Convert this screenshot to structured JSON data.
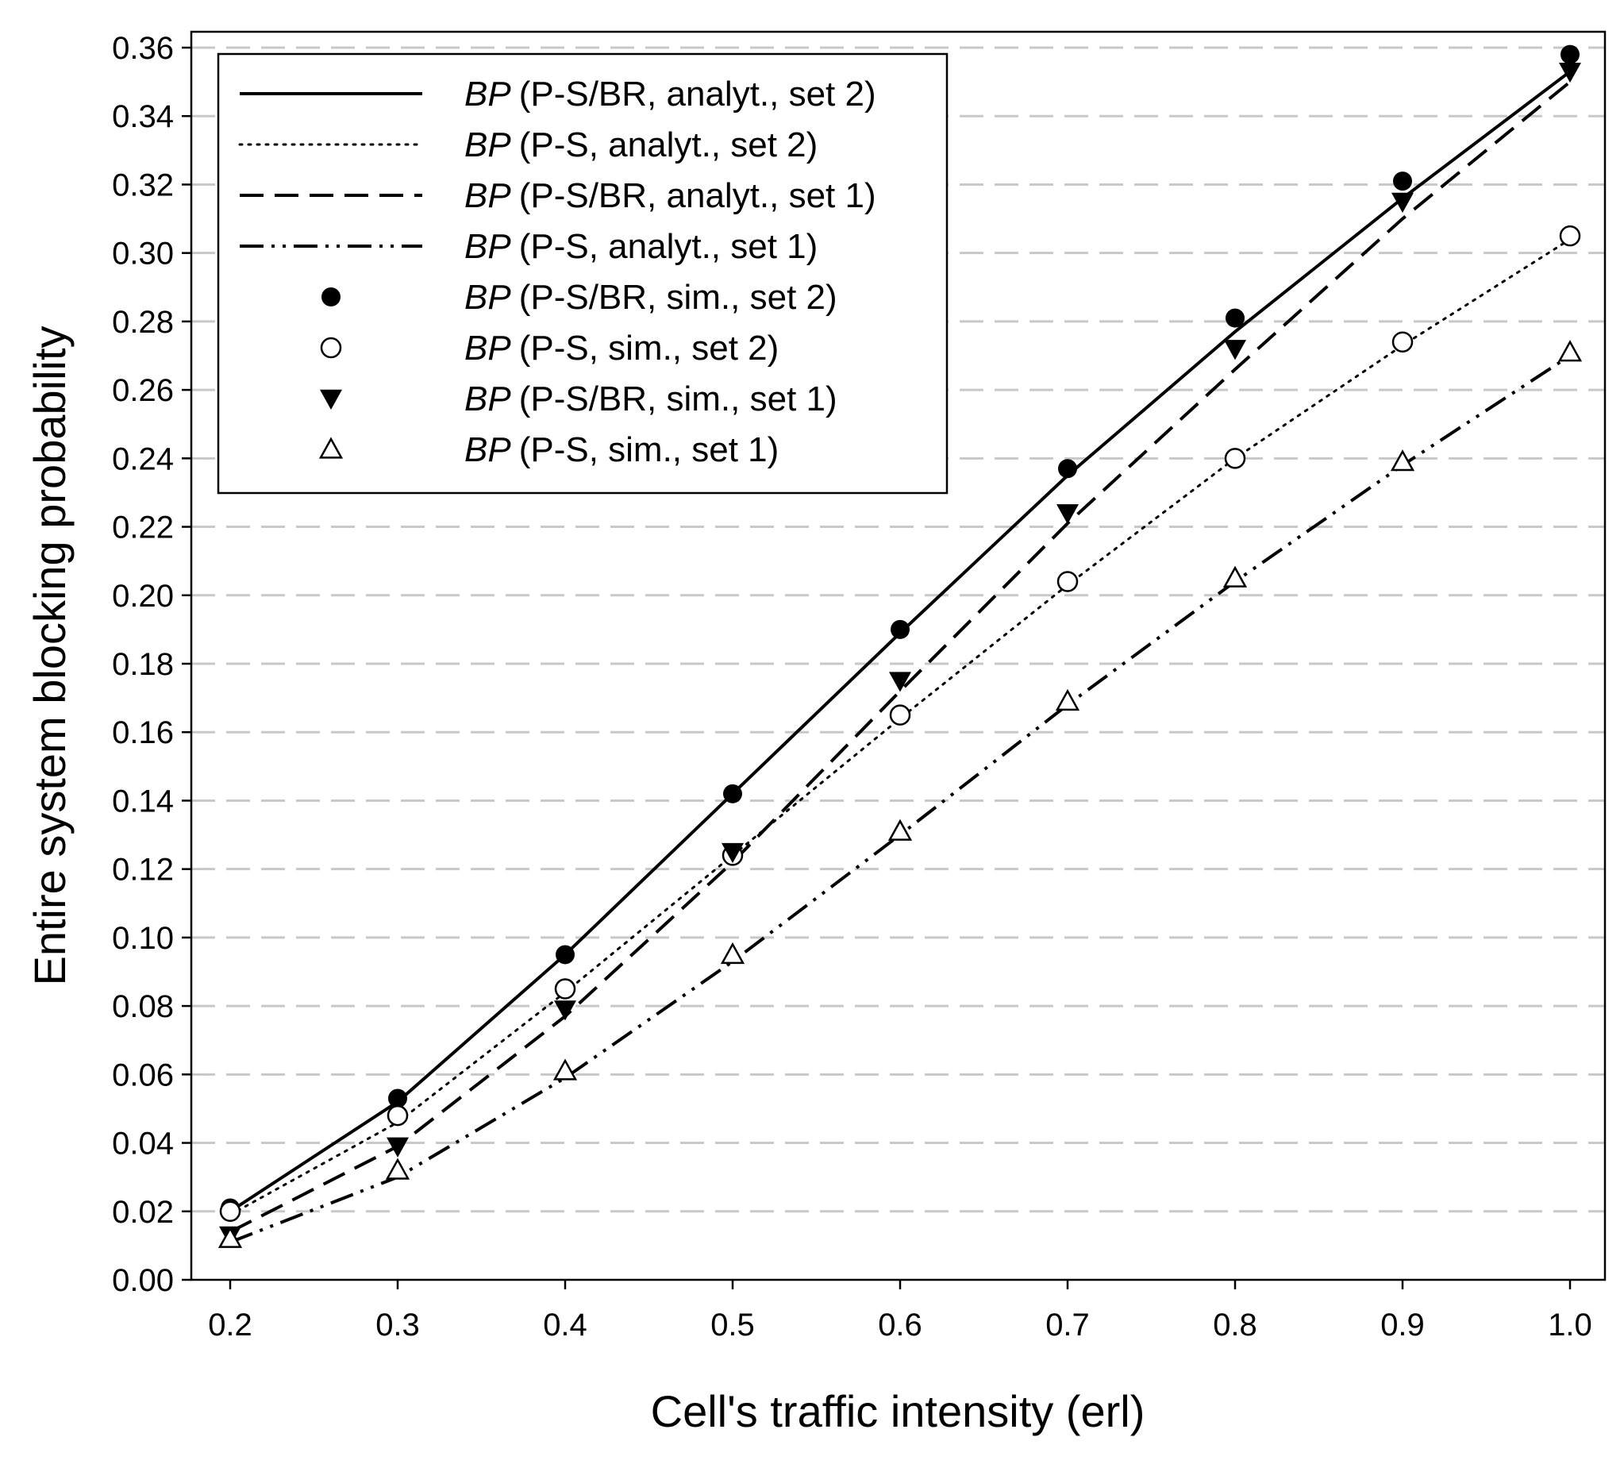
{
  "chart_data": {
    "type": "line",
    "title": "",
    "xlabel": "Cell's traffic intensity (erl)",
    "ylabel": "Entire system blocking probability",
    "xlim": [
      0.2,
      1.0
    ],
    "ylim": [
      0.0,
      0.36
    ],
    "x_ticks": [
      "0.2",
      "0.3",
      "0.4",
      "0.5",
      "0.6",
      "0.7",
      "0.8",
      "0.9",
      "1.0"
    ],
    "y_ticks": [
      "0.00",
      "0.02",
      "0.04",
      "0.06",
      "0.08",
      "0.10",
      "0.12",
      "0.14",
      "0.16",
      "0.18",
      "0.20",
      "0.22",
      "0.24",
      "0.26",
      "0.28",
      "0.30",
      "0.32",
      "0.34",
      "0.36"
    ],
    "grid": "horizontal dashed",
    "legend_position": "top-left",
    "x": [
      0.2,
      0.3,
      0.4,
      0.5,
      0.6,
      0.7,
      0.8,
      0.9,
      1.0
    ],
    "series": [
      {
        "name": "(P-S/BR, analyt., set 2)",
        "prefix": "BP",
        "kind": "line",
        "style": "solid",
        "values": [
          0.02,
          0.052,
          0.095,
          0.142,
          0.189,
          0.235,
          0.277,
          0.316,
          0.353
        ]
      },
      {
        "name": "(P-S, analyt., set 2)",
        "prefix": "BP",
        "kind": "line",
        "style": "dotted",
        "values": [
          0.019,
          0.046,
          0.084,
          0.124,
          0.164,
          0.203,
          0.24,
          0.273,
          0.304
        ]
      },
      {
        "name": "(P-S/BR, analyt., set 1)",
        "prefix": "BP",
        "kind": "line",
        "style": "dashed",
        "values": [
          0.014,
          0.039,
          0.077,
          0.122,
          0.172,
          0.221,
          0.266,
          0.31,
          0.35
        ]
      },
      {
        "name": "(P-S, analyt., set 1)",
        "prefix": "BP",
        "kind": "line",
        "style": "dash-dot-dot",
        "values": [
          0.011,
          0.03,
          0.059,
          0.093,
          0.13,
          0.168,
          0.204,
          0.238,
          0.27
        ]
      },
      {
        "name": "(P-S/BR, sim., set 2)",
        "prefix": "BP",
        "kind": "marker",
        "marker": "filled-circle",
        "values": [
          0.021,
          0.053,
          0.095,
          0.142,
          0.19,
          0.237,
          0.281,
          0.321,
          0.358
        ]
      },
      {
        "name": "(P-S, sim., set 2)",
        "prefix": "BP",
        "kind": "marker",
        "marker": "open-circle",
        "values": [
          0.02,
          0.048,
          0.085,
          0.124,
          0.165,
          0.204,
          0.24,
          0.274,
          0.305
        ]
      },
      {
        "name": "(P-S/BR, sim., set 1)",
        "prefix": "BP",
        "kind": "marker",
        "marker": "filled-triangle-down",
        "values": [
          0.013,
          0.039,
          0.079,
          0.125,
          0.175,
          0.224,
          0.272,
          0.315,
          0.353
        ]
      },
      {
        "name": "(P-S, sim., set 1)",
        "prefix": "BP",
        "kind": "marker",
        "marker": "open-triangle-up",
        "values": [
          0.012,
          0.032,
          0.061,
          0.095,
          0.131,
          0.169,
          0.205,
          0.239,
          0.271
        ]
      }
    ]
  }
}
